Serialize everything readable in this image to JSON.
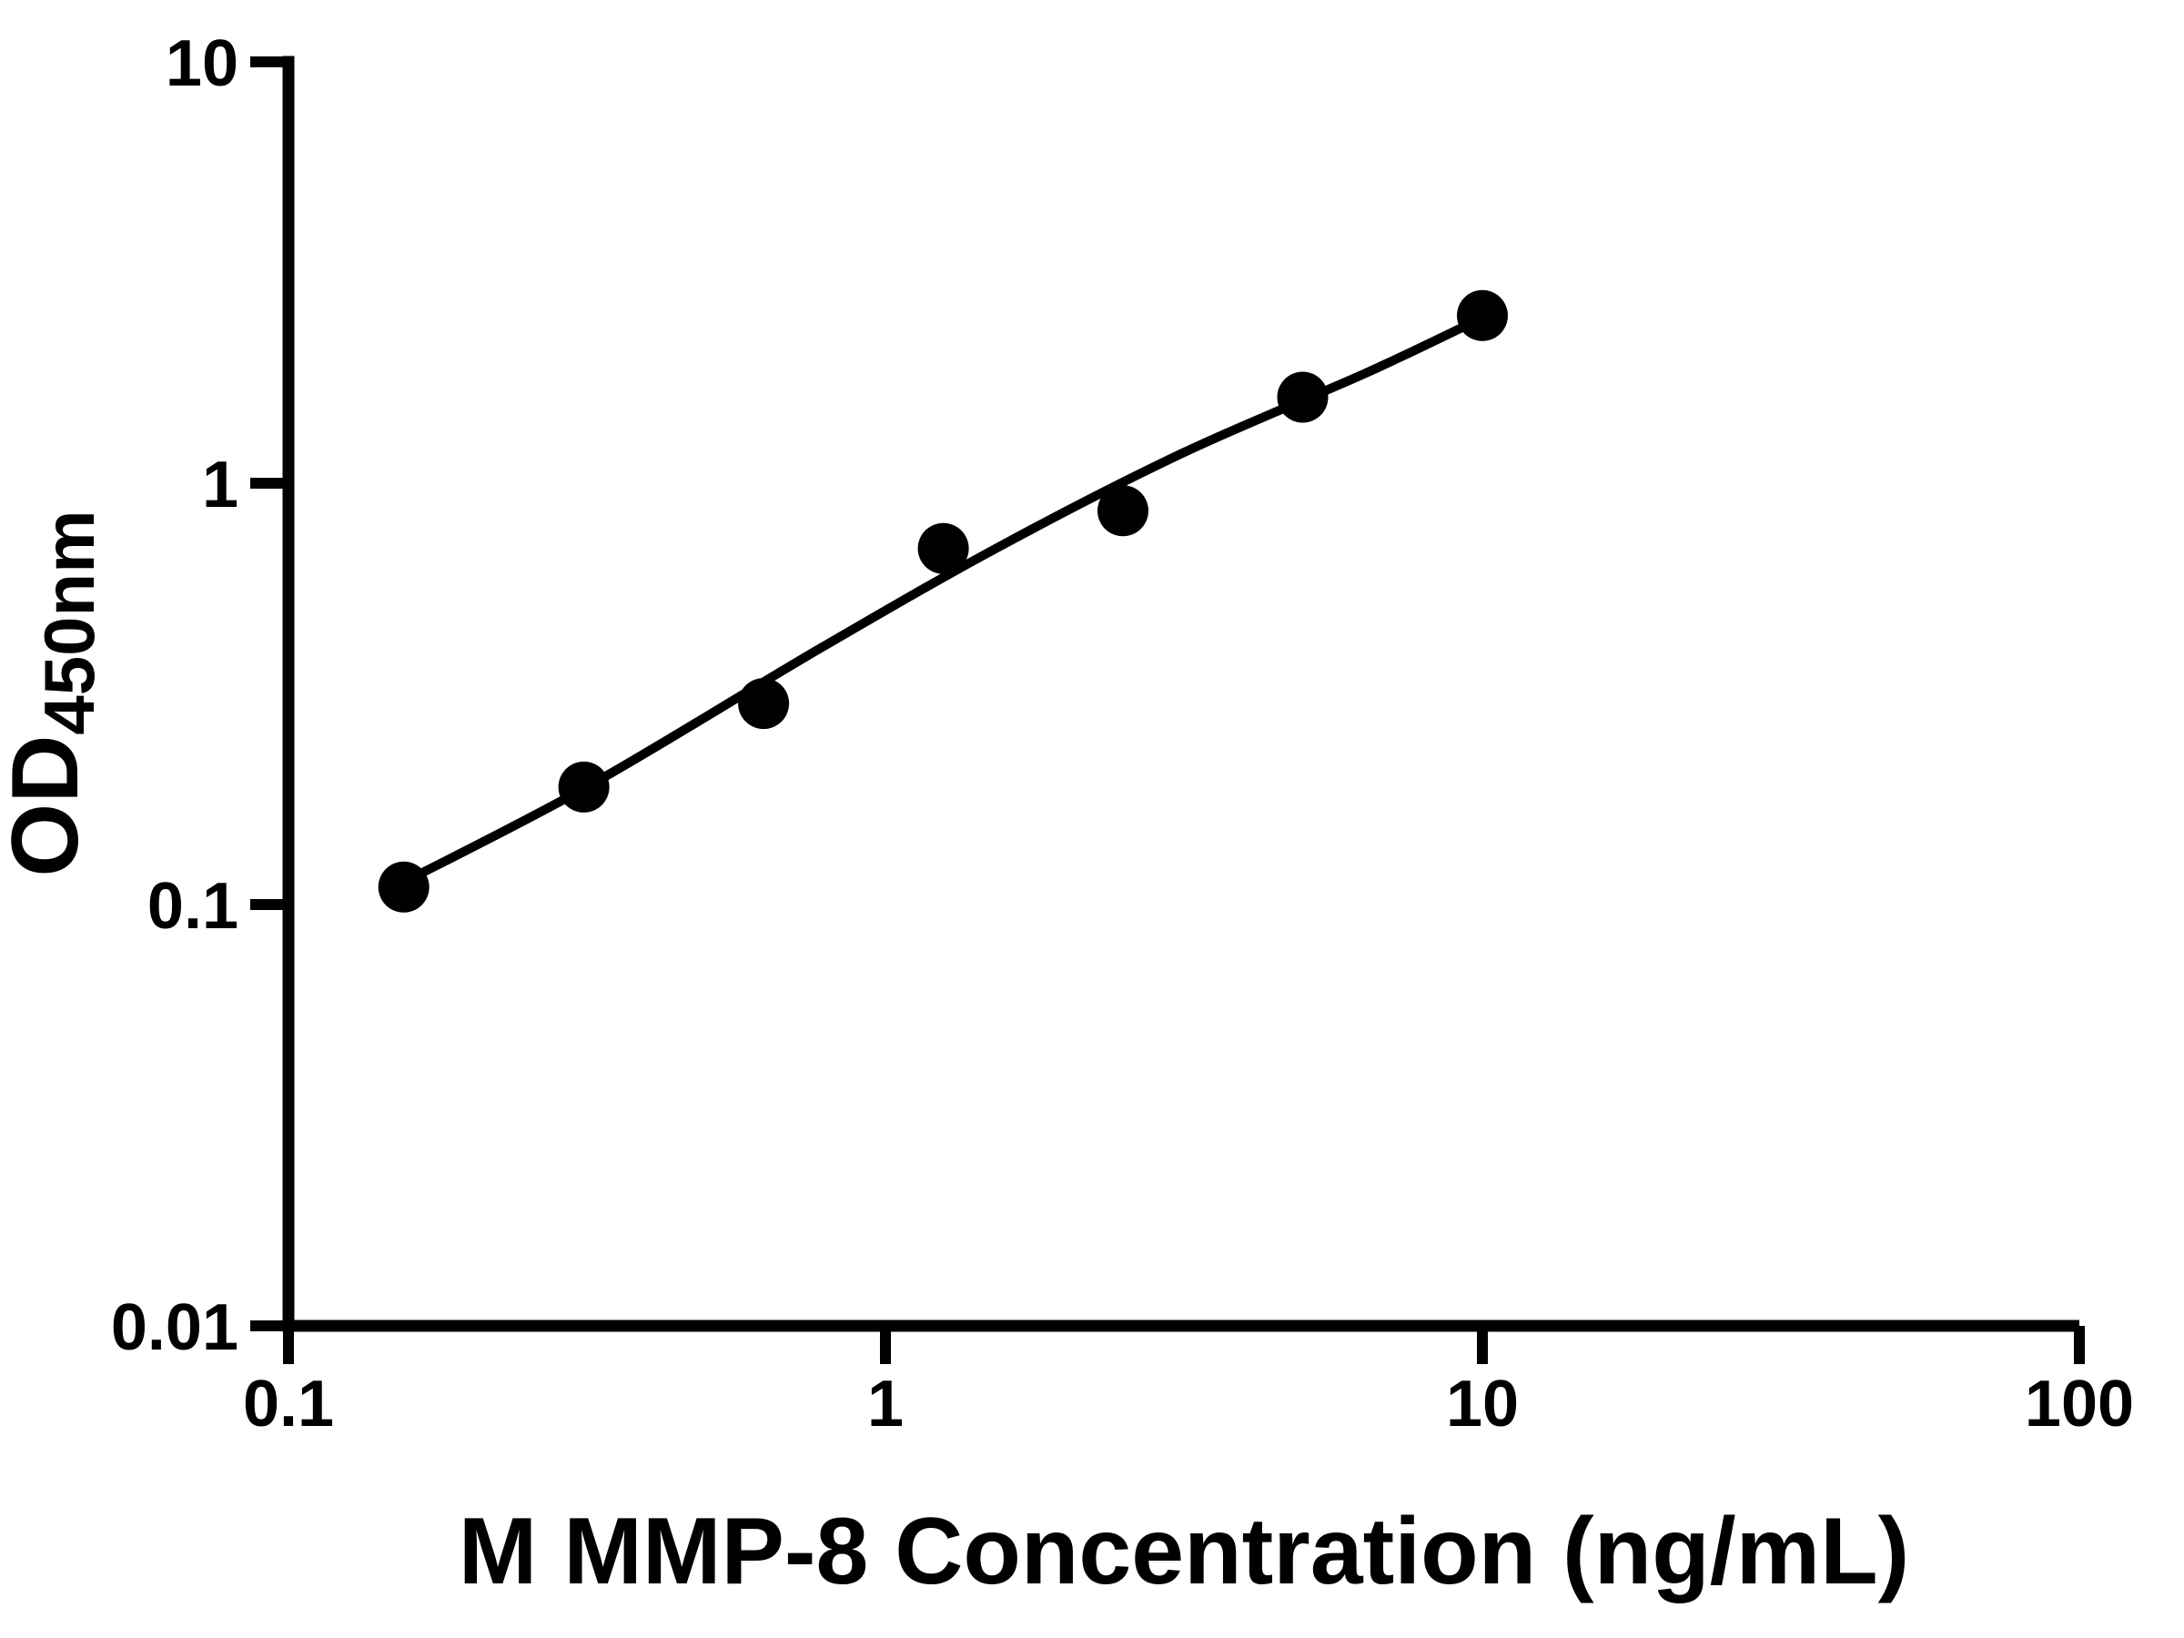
{
  "chart_data": {
    "type": "scatter",
    "title": "",
    "xlabel": "M MMP-8 Concentration (ng/mL)",
    "ylabel_main": "OD",
    "ylabel_sub": "450nm",
    "x_scale": "log",
    "y_scale": "log",
    "xlim": [
      0.1,
      100
    ],
    "ylim": [
      0.01,
      10
    ],
    "grid": false,
    "legend": "none",
    "x_ticks": [
      {
        "value": 0.1,
        "label": "0.1"
      },
      {
        "value": 1,
        "label": "1"
      },
      {
        "value": 10,
        "label": "10"
      },
      {
        "value": 100,
        "label": "100"
      }
    ],
    "y_ticks": [
      {
        "value": 0.01,
        "label": "0.01"
      },
      {
        "value": 0.1,
        "label": "0.1"
      },
      {
        "value": 1,
        "label": "1"
      },
      {
        "value": 10,
        "label": "10"
      }
    ],
    "points": [
      {
        "x": 0.156,
        "y": 0.11
      },
      {
        "x": 0.3125,
        "y": 0.19
      },
      {
        "x": 0.625,
        "y": 0.3
      },
      {
        "x": 1.25,
        "y": 0.7
      },
      {
        "x": 2.5,
        "y": 0.86
      },
      {
        "x": 5,
        "y": 1.6
      },
      {
        "x": 10,
        "y": 2.5
      }
    ],
    "fit_curve": [
      {
        "x": 0.156,
        "y": 0.113
      },
      {
        "x": 0.322,
        "y": 0.193
      },
      {
        "x": 0.774,
        "y": 0.404
      },
      {
        "x": 1.56,
        "y": 0.71
      },
      {
        "x": 3.15,
        "y": 1.18
      },
      {
        "x": 6.35,
        "y": 1.82
      },
      {
        "x": 10.0,
        "y": 2.47
      }
    ],
    "colors": {
      "foreground": "#000000",
      "background": "#ffffff"
    }
  }
}
